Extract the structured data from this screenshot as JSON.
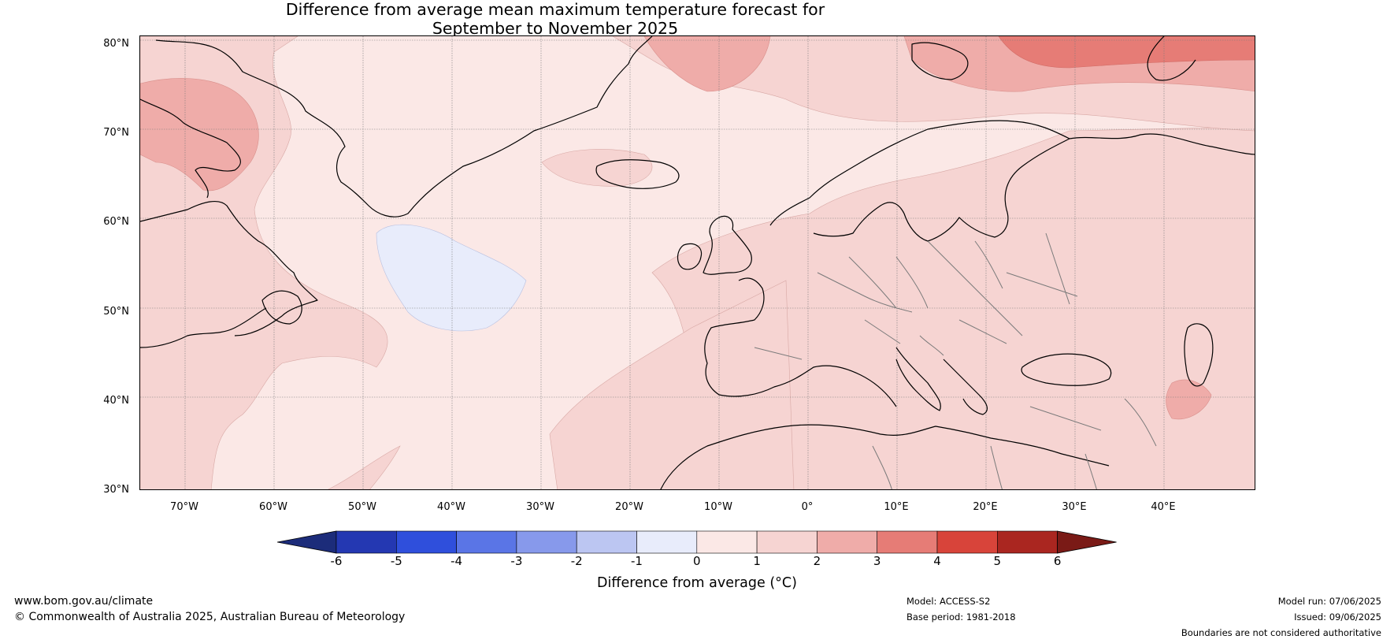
{
  "title_line1": "Difference from average mean maximum temperature forecast for",
  "title_line2": "September to November 2025",
  "lat_labels": [
    "80°N",
    "70°N",
    "60°N",
    "50°N",
    "40°N",
    "30°N"
  ],
  "lon_labels": [
    "70°W",
    "60°W",
    "50°W",
    "40°W",
    "30°W",
    "20°W",
    "10°W",
    "0°",
    "10°E",
    "20°E",
    "30°E",
    "40°E"
  ],
  "colorbar": {
    "ticks": [
      "-6",
      "-5",
      "-4",
      "-3",
      "-2",
      "-1",
      "0",
      "1",
      "2",
      "3",
      "4",
      "5",
      "6"
    ],
    "colors": [
      "#1c2c7a",
      "#2438b2",
      "#2f4fdc",
      "#5a75e6",
      "#8799eb",
      "#bcc6f2",
      "#e8ecfb",
      "#fbe8e6",
      "#f6d4d2",
      "#efaca9",
      "#e67c76",
      "#d8443a",
      "#aa2620",
      "#7a1a16"
    ],
    "label": "Difference from average (°C)"
  },
  "footer": {
    "site": "www.bom.gov.au/climate",
    "copyright": "© Commonwealth of Australia 2025, Australian Bureau of Meteorology",
    "model": "Model: ACCESS-S2",
    "base_period": "Base period: 1981-2018",
    "model_run": "Model run: 07/06/2025",
    "issued": "Issued: 09/06/2025",
    "disclaimer": "Boundaries are not considered authoritative"
  }
}
